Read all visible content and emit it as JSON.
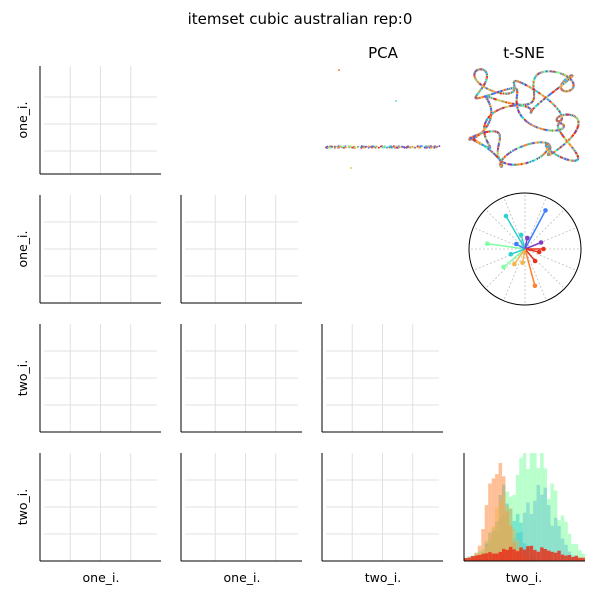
{
  "figure": {
    "title": "itemset cubic australian rep:0",
    "column_titles": [
      "PCA",
      "t-SNE"
    ],
    "row_labels": [
      "one_i.",
      "one_i.",
      "two_i.",
      "two_i."
    ],
    "column_labels": [
      "one_i.",
      "one_i.",
      "two_i.",
      "two_i."
    ]
  },
  "chart_data": [
    {
      "type": "grid",
      "panel": "pairwise-empty-panels",
      "rows": 4,
      "columns": 4,
      "gridlines": true,
      "tick_labels": "none"
    },
    {
      "type": "scatter",
      "panel": "PCA",
      "title": "PCA",
      "note": "dense horizontal band of points with a few outliers",
      "colormap": [
        "#7f3fbf",
        "#3f7fff",
        "#2fd0d0",
        "#7fffa0",
        "#f5b44a",
        "#ff7f2f",
        "#e8301c"
      ]
    },
    {
      "type": "scatter",
      "panel": "t-SNE",
      "title": "t-SNE",
      "note": "long winding curve of points filling the panel",
      "colormap": [
        "#7f3fbf",
        "#3f7fff",
        "#2fd0d0",
        "#7fffa0",
        "#f5b44a",
        "#ff7f2f",
        "#e8301c"
      ]
    },
    {
      "type": "polar",
      "panel": "radial-star",
      "spokes": [
        {
          "angle_deg": 62,
          "r": 0.78,
          "color": "#3f7fff"
        },
        {
          "angle_deg": 120,
          "r": 0.68,
          "color": "#2fd0d0"
        },
        {
          "angle_deg": 105,
          "r": 0.26,
          "color": "#2fd0d0"
        },
        {
          "angle_deg": 78,
          "r": 0.2,
          "color": "#7f3fbf"
        },
        {
          "angle_deg": 22,
          "r": 0.31,
          "color": "#7f3fbf"
        },
        {
          "angle_deg": 0,
          "r": 0.33,
          "color": "#e8301c"
        },
        {
          "angle_deg": -12,
          "r": 0.26,
          "color": "#e8301c"
        },
        {
          "angle_deg": -50,
          "r": 0.28,
          "color": "#e8301c"
        },
        {
          "angle_deg": -75,
          "r": 0.68,
          "color": "#ff7f2f"
        },
        {
          "angle_deg": 172,
          "r": 0.68,
          "color": "#7fffa0"
        },
        {
          "angle_deg": -140,
          "r": 0.5,
          "color": "#7fffa0"
        },
        {
          "angle_deg": -125,
          "r": 0.33,
          "color": "#f5b44a"
        },
        {
          "angle_deg": -100,
          "r": 0.25,
          "color": "#f5b44a"
        },
        {
          "angle_deg": 200,
          "r": 0.27,
          "color": "#2fd0d0"
        },
        {
          "angle_deg": 150,
          "r": 0.18,
          "color": "#3f7fff"
        }
      ]
    },
    {
      "type": "histogram",
      "panel": "two_i.-distribution",
      "bins": 35,
      "series": [
        {
          "color": "#3f7fff",
          "alpha": 0.5,
          "center": 0.62,
          "spread": 0.13,
          "peak": 0.6
        },
        {
          "color": "#7fffa0",
          "alpha": 0.55,
          "center": 0.55,
          "spread": 0.2,
          "peak": 0.92
        },
        {
          "color": "#2fd0d0",
          "alpha": 0.5,
          "center": 0.35,
          "spread": 0.1,
          "peak": 0.6
        },
        {
          "color": "#ff7f2f",
          "alpha": 0.5,
          "center": 0.27,
          "spread": 0.08,
          "peak": 0.9
        },
        {
          "color": "#f5b44a",
          "alpha": 0.45,
          "center": 0.32,
          "spread": 0.09,
          "peak": 0.55
        },
        {
          "color": "#e8301c",
          "alpha": 0.85,
          "center": 0.5,
          "spread": 0.3,
          "peak": 0.12
        }
      ]
    }
  ]
}
